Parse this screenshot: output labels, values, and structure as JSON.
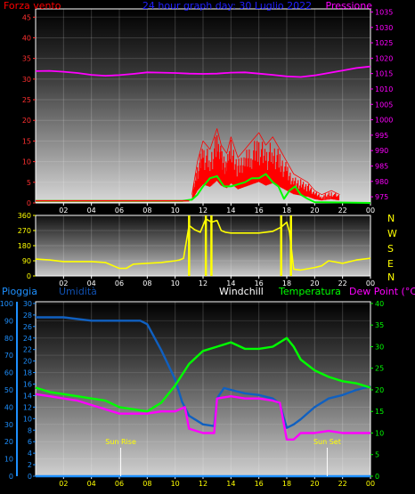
{
  "colors": {
    "wind": "#ff0000",
    "gust_green": "#00ff00",
    "pressure": "#ff00ff",
    "direction": "#ffff00",
    "humidity": "#1060c0",
    "temperature": "#00ff00",
    "dew_point": "#ff00ff",
    "rain": "#1e90ff",
    "axis_blue": "#1e90ff",
    "white": "#ffffff"
  },
  "header": {
    "left": "Forza vento",
    "center": "24 hour graph day: 30 Luglio 2022",
    "right": "Pressione"
  },
  "panel2": {
    "compass": [
      "N",
      "W",
      "S",
      "E",
      "N"
    ]
  },
  "panel3": {
    "labels": {
      "rain": "Pioggia",
      "humidity": "Umidità",
      "windchill": "Windchill",
      "temperature": "Temperatura",
      "dew_point": "Dew Point (°C)"
    },
    "annotations": {
      "sun_rise": "Sun Rise",
      "sun_set": "Sun Set"
    }
  },
  "chart_data": [
    {
      "type": "line",
      "name": "wind-pressure",
      "x_ticks": [
        "02",
        "04",
        "06",
        "08",
        "10",
        "12",
        "14",
        "16",
        "18",
        "20",
        "22",
        "00"
      ],
      "y_left": {
        "label": "Forza vento",
        "ticks": [
          0,
          5,
          10,
          15,
          20,
          25,
          30,
          35,
          40,
          45
        ],
        "range": [
          0,
          47
        ]
      },
      "y_right": {
        "label": "Pressione",
        "ticks": [
          975,
          980,
          985,
          990,
          995,
          1000,
          1005,
          1010,
          1015,
          1020,
          1025,
          1030,
          1035
        ],
        "range": [
          973,
          1036
        ]
      },
      "series": [
        {
          "name": "Pressione",
          "axis": "right",
          "x": [
            0,
            1,
            2,
            3,
            4,
            5,
            6,
            7,
            8,
            9,
            10,
            11,
            12,
            13,
            14,
            15,
            16,
            17,
            18,
            19,
            20,
            21,
            22,
            23,
            24
          ],
          "y": [
            1015.8,
            1015.9,
            1015.6,
            1015.2,
            1014.6,
            1014.3,
            1014.5,
            1014.9,
            1015.4,
            1015.3,
            1015.2,
            1015.0,
            1014.9,
            1015.0,
            1015.3,
            1015.4,
            1015.0,
            1014.6,
            1014.1,
            1013.9,
            1014.4,
            1015.2,
            1016.0,
            1016.8,
            1017.3
          ]
        },
        {
          "name": "Forza vento (avg)",
          "axis": "left",
          "x": [
            0,
            10.5,
            11.2,
            11.6,
            12.0,
            12.5,
            13.0,
            13.5,
            14.0,
            14.5,
            15.0,
            15.5,
            16.0,
            16.5,
            17.0,
            17.4,
            17.8,
            18.2,
            18.6,
            19.0,
            19.5,
            20.0,
            24
          ],
          "y": [
            0.5,
            0.5,
            0.8,
            2,
            4,
            6,
            6.5,
            4,
            4,
            4.5,
            5,
            6,
            6,
            7,
            5,
            4,
            1,
            3,
            4,
            2,
            1,
            0.2,
            0
          ]
        },
        {
          "name": "Forza vento (gust)",
          "axis": "left",
          "x": [
            11.2,
            11.6,
            12.0,
            12.5,
            13.0,
            13.3,
            13.7,
            14.0,
            14.5,
            15.0,
            15.5,
            16.0,
            16.5,
            17.0,
            17.5,
            18.0,
            18.5,
            19.0,
            19.5,
            20.0,
            20.5,
            21.2,
            21.8
          ],
          "y": [
            2,
            10,
            15,
            13,
            18,
            14,
            12,
            16,
            11,
            13,
            15,
            17,
            14,
            16,
            13,
            10,
            7,
            6,
            5,
            3,
            2,
            3,
            2
          ]
        }
      ]
    },
    {
      "type": "line",
      "name": "wind-direction",
      "x_ticks": [
        "02",
        "04",
        "06",
        "08",
        "10",
        "12",
        "14",
        "16",
        "18",
        "20",
        "22",
        "00"
      ],
      "y_left": {
        "ticks": [
          0,
          90,
          180,
          270,
          360
        ],
        "range": [
          0,
          360
        ]
      },
      "series": [
        {
          "name": "Direzione",
          "x": [
            0,
            1,
            2,
            3,
            4,
            5,
            6,
            6.5,
            7,
            8,
            9,
            10,
            10.3,
            10.6,
            11,
            11.4,
            11.8,
            12,
            12.2,
            12.6,
            13,
            13.3,
            13.6,
            14,
            15,
            16,
            17,
            17.6,
            18,
            18.2,
            18.5,
            19,
            20,
            20.5,
            21,
            22,
            23,
            24
          ],
          "y": [
            100,
            95,
            85,
            85,
            85,
            80,
            45,
            45,
            70,
            75,
            80,
            90,
            95,
            105,
            300,
            275,
            260,
            300,
            340,
            320,
            330,
            270,
            260,
            255,
            255,
            255,
            265,
            290,
            320,
            260,
            40,
            35,
            50,
            60,
            90,
            75,
            95,
            105
          ]
        }
      ]
    },
    {
      "type": "line",
      "name": "temperature-humidity",
      "x_ticks": [
        "02",
        "04",
        "06",
        "08",
        "10",
        "12",
        "14",
        "16",
        "18",
        "20",
        "22",
        "00"
      ],
      "y_left": {
        "label": "Umidità",
        "ticks": [
          0,
          10,
          20,
          30,
          40,
          50,
          60,
          70,
          80,
          90,
          100
        ],
        "range": [
          0,
          101
        ]
      },
      "y_left_inner": {
        "label": "Pioggia",
        "ticks": [
          0,
          2,
          4,
          6,
          8,
          10,
          12,
          14,
          16,
          18,
          20,
          22,
          24,
          26,
          28,
          30
        ],
        "range": [
          0,
          30.3
        ]
      },
      "y_right": {
        "label": "Temperatura",
        "ticks": [
          0,
          5,
          10,
          15,
          20,
          25,
          30,
          35,
          40
        ],
        "range": [
          0,
          40.4
        ]
      },
      "series": [
        {
          "name": "Umidità",
          "axis": "left",
          "x": [
            0,
            2,
            4,
            6,
            7.5,
            8,
            9,
            10,
            10.5,
            11,
            12,
            12.8,
            13,
            13.5,
            14,
            15,
            16,
            17,
            17.5,
            18,
            18.5,
            19,
            20,
            21,
            22,
            23,
            24
          ],
          "y": [
            92,
            92,
            90,
            90,
            90,
            88,
            73,
            56,
            43,
            35,
            30,
            29,
            45,
            51,
            50,
            48,
            47,
            45,
            42,
            28,
            30,
            33,
            40,
            45,
            47,
            50,
            52
          ]
        },
        {
          "name": "Temperatura",
          "axis": "right",
          "x": [
            0,
            1,
            2,
            3,
            4,
            5,
            6,
            7,
            8,
            9,
            10,
            11,
            12,
            13,
            14,
            15,
            16,
            17,
            17.5,
            18,
            18.5,
            19,
            20,
            21,
            22,
            23,
            24
          ],
          "y": [
            20.5,
            19.5,
            19,
            18.5,
            18,
            17.5,
            16,
            15.5,
            15,
            17,
            21,
            26,
            29,
            30,
            31,
            29.5,
            29.5,
            30,
            31,
            32,
            30,
            27,
            24.5,
            23,
            22,
            21.5,
            20.5
          ]
        },
        {
          "name": "Dew Point (°C)",
          "axis": "right",
          "x": [
            0,
            1,
            2,
            3,
            4,
            5,
            6,
            7,
            8,
            9,
            10,
            10.7,
            11,
            12,
            12.8,
            13,
            14,
            15,
            16,
            17,
            17.5,
            17.8,
            18,
            18.5,
            19,
            20,
            21,
            22,
            23,
            24
          ],
          "y": [
            19,
            18.5,
            18,
            17.5,
            16.5,
            15.5,
            14.5,
            14.5,
            14.5,
            15,
            15,
            16,
            11,
            10,
            10,
            18,
            18.5,
            18,
            18,
            17.5,
            17,
            12,
            8.5,
            8.5,
            10,
            10,
            10.5,
            10,
            10,
            10
          ]
        },
        {
          "name": "Pioggia",
          "axis": "left_inner",
          "x": [
            0,
            24
          ],
          "y": [
            0,
            0
          ]
        }
      ],
      "annotations": [
        {
          "label": "Sun Rise",
          "x": 6.1
        },
        {
          "label": "Sun Set",
          "x": 20.9
        }
      ]
    }
  ]
}
